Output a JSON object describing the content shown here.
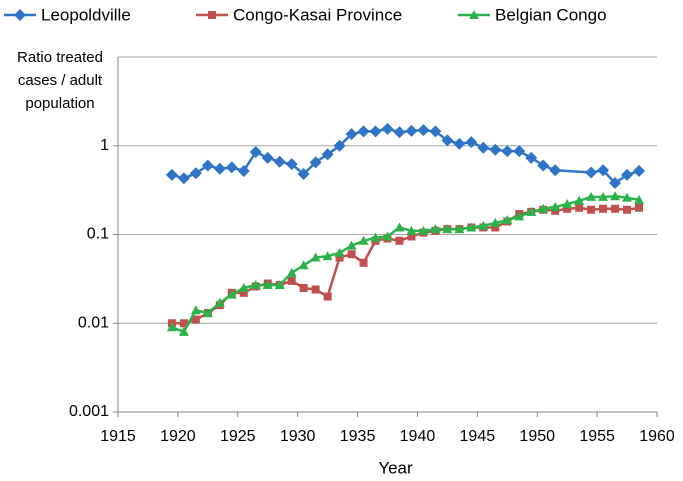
{
  "chart_data": {
    "type": "line",
    "y_label": "Ratio treated cases / adult population",
    "x_label": "Year",
    "log_y": true,
    "grid": true,
    "legend": "top",
    "xlim": [
      1915,
      1960
    ],
    "xticks": [
      1915,
      1920,
      1925,
      1930,
      1935,
      1940,
      1945,
      1950,
      1955,
      1960
    ],
    "ylim": [
      0.001,
      10
    ],
    "yticks": [
      0.001,
      0.01,
      0.1,
      1
    ],
    "series": [
      {
        "name": "Leopoldville",
        "color": "#2e75c7",
        "marker": "diamond",
        "x": [
          1919.5,
          1920.5,
          1921.5,
          1922.5,
          1923.5,
          1924.5,
          1925.5,
          1926.5,
          1927.5,
          1928.5,
          1929.5,
          1930.5,
          1931.5,
          1932.5,
          1933.5,
          1934.5,
          1935.5,
          1936.5,
          1937.5,
          1938.5,
          1939.5,
          1940.5,
          1941.5,
          1942.5,
          1943.5,
          1944.5,
          1945.5,
          1946.5,
          1947.5,
          1948.5,
          1949.5,
          1950.5,
          1951.5,
          1954.5,
          1955.5,
          1956.5,
          1957.5,
          1958.5
        ],
        "values": [
          0.47,
          0.43,
          0.49,
          0.6,
          0.55,
          0.57,
          0.52,
          0.85,
          0.73,
          0.66,
          0.62,
          0.48,
          0.65,
          0.8,
          1.0,
          1.35,
          1.45,
          1.45,
          1.55,
          1.42,
          1.47,
          1.5,
          1.45,
          1.15,
          1.05,
          1.1,
          0.95,
          0.9,
          0.87,
          0.87,
          0.73,
          0.6,
          0.53,
          0.5,
          0.53,
          0.38,
          0.47,
          0.52
        ]
      },
      {
        "name": "Congo-Kasai Province",
        "color": "#c0504d",
        "marker": "square",
        "x": [
          1919.5,
          1920.5,
          1921.5,
          1922.5,
          1923.5,
          1924.5,
          1925.5,
          1926.5,
          1927.5,
          1928.5,
          1929.5,
          1930.5,
          1931.5,
          1932.5,
          1933.5,
          1934.5,
          1935.5,
          1936.5,
          1937.5,
          1938.5,
          1939.5,
          1940.5,
          1941.5,
          1942.5,
          1943.5,
          1944.5,
          1945.5,
          1946.5,
          1947.5,
          1948.5,
          1949.5,
          1950.5,
          1951.5,
          1952.5,
          1953.5,
          1954.5,
          1955.5,
          1956.5,
          1957.5,
          1958.5
        ],
        "values": [
          0.01,
          0.01,
          0.011,
          0.013,
          0.016,
          0.022,
          0.022,
          0.026,
          0.028,
          0.027,
          0.03,
          0.025,
          0.024,
          0.02,
          0.055,
          0.06,
          0.048,
          0.085,
          0.09,
          0.085,
          0.095,
          0.105,
          0.11,
          0.115,
          0.115,
          0.12,
          0.12,
          0.12,
          0.14,
          0.17,
          0.18,
          0.19,
          0.185,
          0.195,
          0.2,
          0.19,
          0.195,
          0.195,
          0.19,
          0.2
        ]
      },
      {
        "name": "Belgian Congo",
        "color": "#2bb34a",
        "marker": "triangle",
        "x": [
          1919.5,
          1920.5,
          1921.5,
          1922.5,
          1923.5,
          1924.5,
          1925.5,
          1926.5,
          1927.5,
          1928.5,
          1929.5,
          1930.5,
          1931.5,
          1932.5,
          1933.5,
          1934.5,
          1935.5,
          1936.5,
          1937.5,
          1938.5,
          1939.5,
          1940.5,
          1941.5,
          1942.5,
          1943.5,
          1944.5,
          1945.5,
          1946.5,
          1947.5,
          1948.5,
          1949.5,
          1950.5,
          1951.5,
          1952.5,
          1953.5,
          1954.5,
          1955.5,
          1956.5,
          1957.5,
          1958.5
        ],
        "values": [
          0.009,
          0.008,
          0.014,
          0.013,
          0.017,
          0.021,
          0.025,
          0.027,
          0.027,
          0.027,
          0.037,
          0.045,
          0.055,
          0.057,
          0.062,
          0.075,
          0.085,
          0.092,
          0.095,
          0.12,
          0.11,
          0.11,
          0.115,
          0.115,
          0.115,
          0.12,
          0.125,
          0.135,
          0.145,
          0.16,
          0.18,
          0.195,
          0.205,
          0.22,
          0.24,
          0.265,
          0.265,
          0.27,
          0.26,
          0.245
        ]
      }
    ]
  }
}
